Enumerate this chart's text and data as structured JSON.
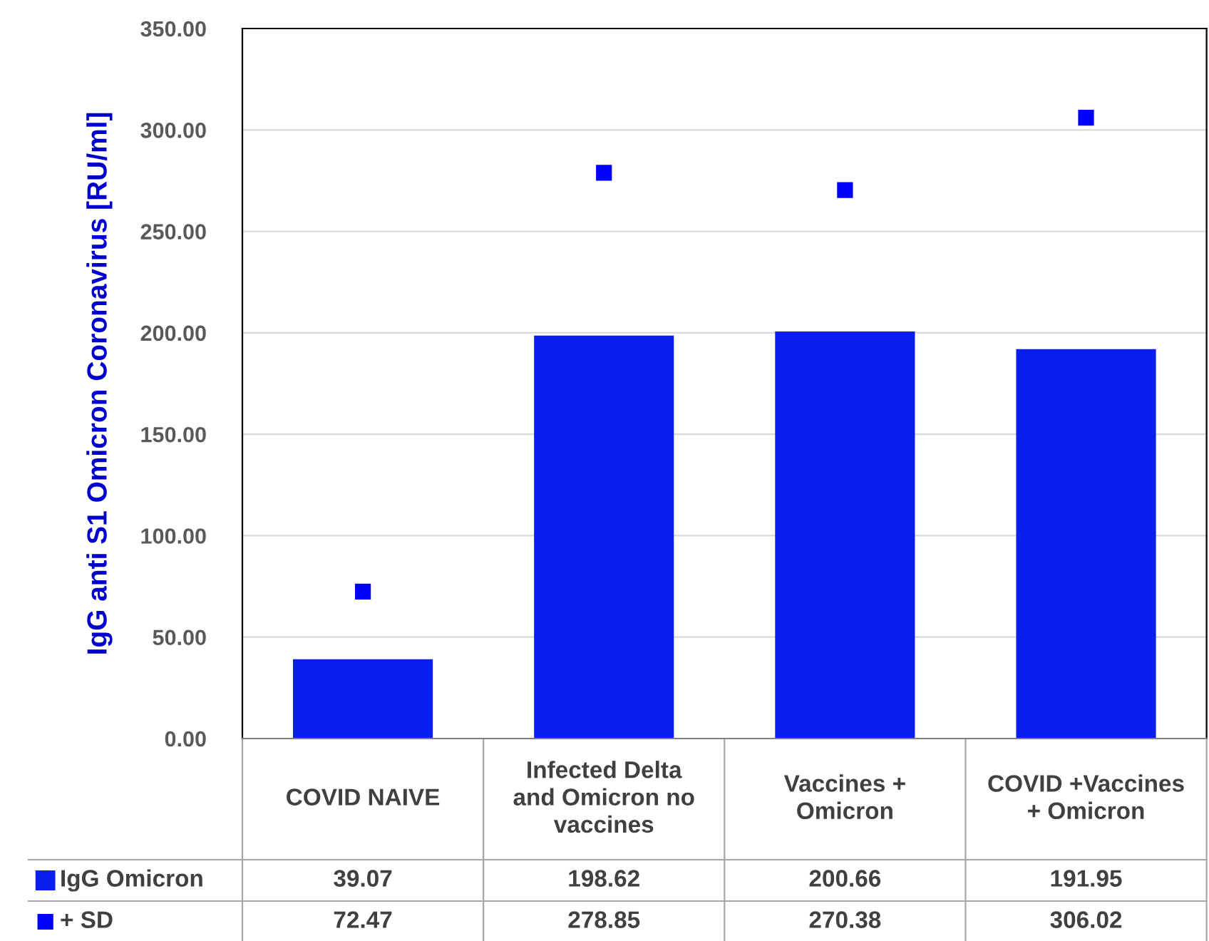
{
  "chart_data": {
    "type": "bar",
    "categories": [
      "COVID NAIVE",
      "Infected Delta and Omicron no vaccines",
      "Vaccines + Omicron",
      "COVID +Vaccines + Omicron"
    ],
    "series": [
      {
        "name": "IgG Omicron",
        "color": "#0a1ef0",
        "values": [
          39.07,
          198.62,
          200.66,
          191.95
        ]
      },
      {
        "name": "+ SD",
        "type": "scatter",
        "marker": "square",
        "color": "#0000ff",
        "values": [
          72.47,
          278.85,
          270.38,
          306.02
        ]
      }
    ],
    "ylabel": "IgG anti S1 Omicron Coronavirus [RU/ml]",
    "ylim": [
      0,
      350
    ],
    "yticks": [
      {
        "value": 0,
        "label": "0.00"
      },
      {
        "value": 50,
        "label": "50.00"
      },
      {
        "value": 100,
        "label": "100.00"
      },
      {
        "value": 150,
        "label": "150.00"
      },
      {
        "value": 200,
        "label": "200.00"
      },
      {
        "value": 250,
        "label": "250.00"
      },
      {
        "value": 300,
        "label": "300.00"
      },
      {
        "value": 350,
        "label": "350.00"
      }
    ],
    "grid": "y",
    "legend": "bottom",
    "data_labels": true
  }
}
